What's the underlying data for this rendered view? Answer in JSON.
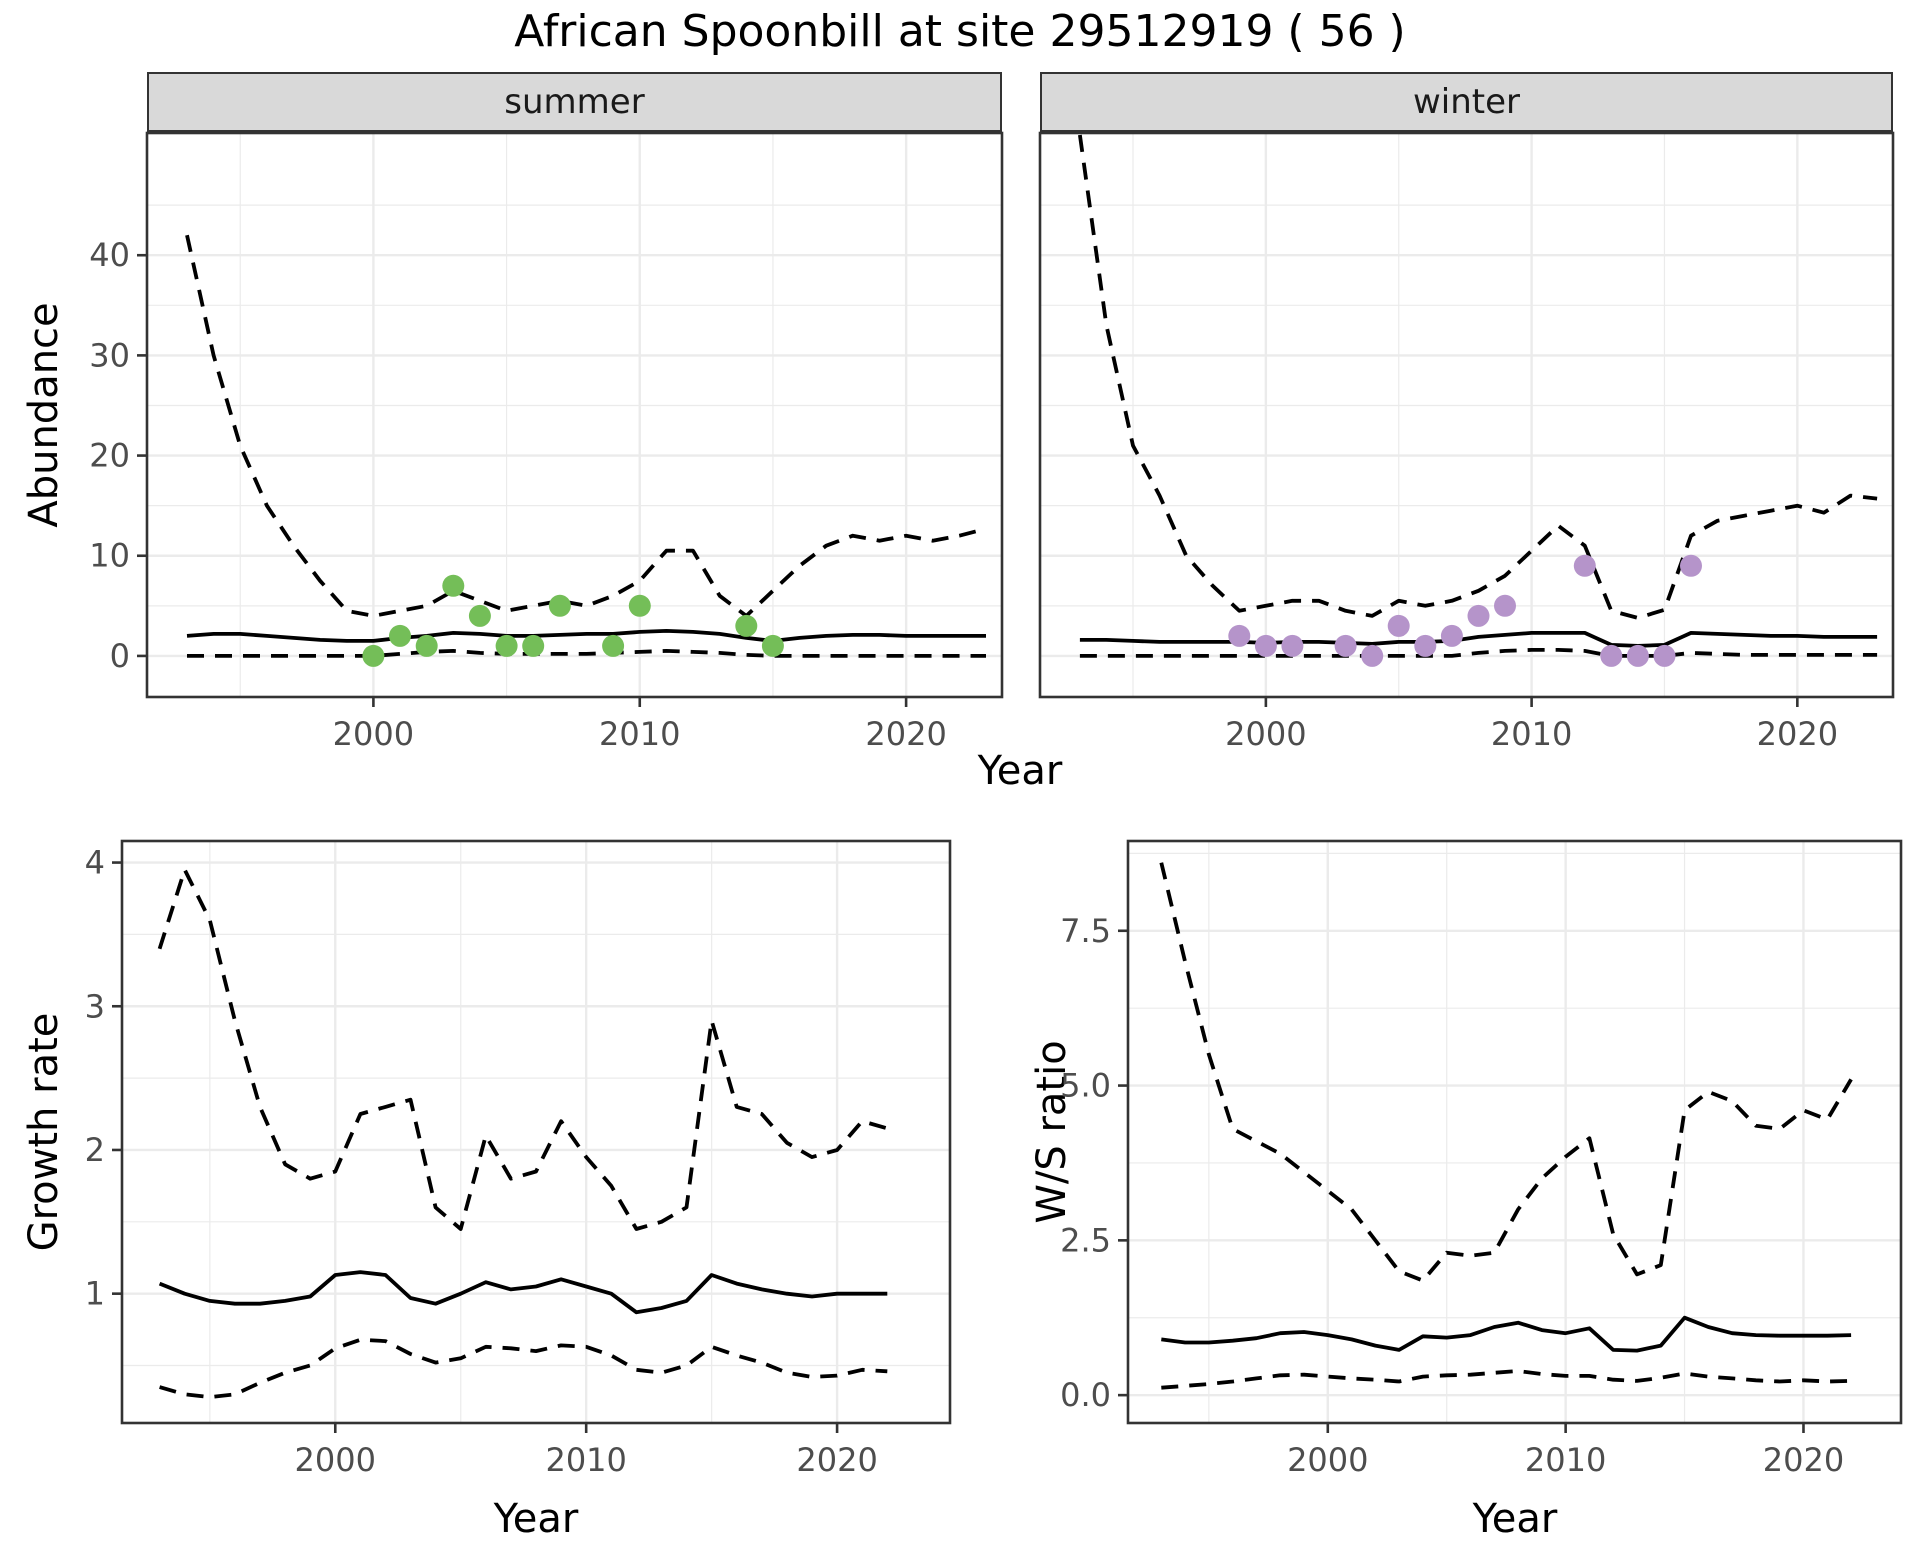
{
  "title": "African Spoonbill at site 29512919 ( 56 )",
  "colors": {
    "summer_point": "#74BE58",
    "winter_point": "#B594CA",
    "series_line": "#000000",
    "grid": "#EBEBEB",
    "strip_bg": "#D9D9D9",
    "panel_bg": "#FFFFFF",
    "panel_border": "#333333",
    "tick_text": "#4D4D4D",
    "title_text": "#000000"
  },
  "chart_data": [
    {
      "id": "abundance-summer",
      "type": "line",
      "facet_label": "summer",
      "xlabel": "Year",
      "ylabel": "Abundance",
      "xlim": [
        1991.5,
        2023.6
      ],
      "ylim": [
        -4.1,
        52.2
      ],
      "x_ticks": [
        2000,
        2010,
        2020
      ],
      "x_tick_labels": [
        "2000",
        "2010",
        "2020"
      ],
      "y_ticks": [
        0,
        10,
        20,
        30,
        40
      ],
      "y_tick_labels": [
        "0",
        "10",
        "20",
        "30",
        "40"
      ],
      "grid": true,
      "legend": "none",
      "years": [
        1993,
        1994,
        1995,
        1996,
        1997,
        1998,
        1999,
        2000,
        2001,
        2002,
        2003,
        2004,
        2005,
        2006,
        2007,
        2008,
        2009,
        2010,
        2011,
        2012,
        2013,
        2014,
        2015,
        2016,
        2017,
        2018,
        2019,
        2020,
        2021,
        2022,
        2023
      ],
      "series": [
        {
          "name": "upper-95ci",
          "style": "dashed",
          "values": [
            42,
            30,
            21,
            15,
            11,
            7.5,
            4.5,
            4,
            4.5,
            5,
            6.5,
            5.5,
            4.5,
            5,
            5.5,
            5,
            6,
            7.5,
            10.5,
            10.5,
            6,
            4,
            6.5,
            9,
            11,
            12,
            11.5,
            12,
            11.5,
            12,
            12.7
          ]
        },
        {
          "name": "median",
          "style": "solid",
          "values": [
            2,
            2.2,
            2.2,
            2,
            1.8,
            1.6,
            1.5,
            1.5,
            1.8,
            2,
            2.3,
            2.2,
            2,
            2,
            2.1,
            2.2,
            2.2,
            2.4,
            2.5,
            2.4,
            2.2,
            1.8,
            1.5,
            1.8,
            2,
            2.1,
            2.1,
            2,
            2,
            2,
            2
          ]
        },
        {
          "name": "lower-95ci",
          "style": "dashed",
          "values": [
            0,
            0,
            0,
            0,
            0,
            0,
            0,
            0,
            0.2,
            0.4,
            0.5,
            0.3,
            0.2,
            0.2,
            0.2,
            0.2,
            0.3,
            0.4,
            0.5,
            0.4,
            0.3,
            0.1,
            0,
            0,
            0,
            0,
            0,
            0,
            0,
            0,
            0
          ]
        }
      ],
      "points": {
        "name": "observed-counts-summer",
        "color": "#74BE58",
        "data": [
          [
            2000,
            0
          ],
          [
            2001,
            2
          ],
          [
            2002,
            1
          ],
          [
            2003,
            7
          ],
          [
            2004,
            4
          ],
          [
            2005,
            1
          ],
          [
            2006,
            1
          ],
          [
            2007,
            5
          ],
          [
            2009,
            1
          ],
          [
            2010,
            5
          ],
          [
            2014,
            3
          ],
          [
            2015,
            1
          ]
        ]
      }
    },
    {
      "id": "abundance-winter",
      "type": "line",
      "facet_label": "winter",
      "xlabel": "Year",
      "ylabel": "Abundance",
      "xlim": [
        1991.5,
        2023.6
      ],
      "ylim": [
        -4.1,
        52.2
      ],
      "x_ticks": [
        2000,
        2010,
        2020
      ],
      "x_tick_labels": [
        "2000",
        "2010",
        "2020"
      ],
      "y_ticks": [
        0,
        10,
        20,
        30,
        40
      ],
      "y_tick_labels": [
        "0",
        "10",
        "20",
        "30",
        "40"
      ],
      "grid": true,
      "legend": "none",
      "years": [
        1993,
        1994,
        1995,
        1996,
        1997,
        1998,
        1999,
        2000,
        2001,
        2002,
        2003,
        2004,
        2005,
        2006,
        2007,
        2008,
        2009,
        2010,
        2011,
        2012,
        2013,
        2014,
        2015,
        2016,
        2017,
        2018,
        2019,
        2020,
        2021,
        2022,
        2023
      ],
      "series": [
        {
          "name": "upper-95ci",
          "style": "dashed",
          "values": [
            52,
            33,
            21,
            16,
            10,
            7,
            4.5,
            5,
            5.5,
            5.5,
            4.5,
            4,
            5.5,
            5,
            5.5,
            6.5,
            8,
            10.5,
            13,
            11,
            4.5,
            3.8,
            4.6,
            12,
            13.5,
            14,
            14.5,
            15,
            14.3,
            16,
            15.7
          ]
        },
        {
          "name": "median",
          "style": "solid",
          "values": [
            1.6,
            1.6,
            1.5,
            1.4,
            1.4,
            1.4,
            1.4,
            1.3,
            1.4,
            1.4,
            1.3,
            1.2,
            1.4,
            1.4,
            1.5,
            1.9,
            2.1,
            2.3,
            2.3,
            2.3,
            1.1,
            1,
            1.1,
            2.3,
            2.2,
            2.1,
            2,
            2,
            1.9,
            1.9,
            1.9
          ]
        },
        {
          "name": "lower-95ci",
          "style": "dashed",
          "values": [
            0,
            0,
            0,
            0,
            0,
            0,
            0,
            0,
            0,
            0,
            0,
            0,
            0,
            0,
            0,
            0.3,
            0.5,
            0.6,
            0.6,
            0.5,
            0,
            0,
            0,
            0.3,
            0.2,
            0.1,
            0.1,
            0.1,
            0.1,
            0.1,
            0.1
          ]
        }
      ],
      "points": {
        "name": "observed-counts-winter",
        "color": "#B594CA",
        "data": [
          [
            1999,
            2
          ],
          [
            2000,
            1
          ],
          [
            2001,
            1
          ],
          [
            2003,
            1
          ],
          [
            2004,
            0
          ],
          [
            2005,
            3
          ],
          [
            2006,
            1
          ],
          [
            2007,
            2
          ],
          [
            2008,
            4
          ],
          [
            2009,
            5
          ],
          [
            2012,
            9
          ],
          [
            2013,
            0
          ],
          [
            2014,
            0
          ],
          [
            2015,
            0
          ],
          [
            2016,
            9
          ]
        ]
      }
    },
    {
      "id": "growth-rate",
      "type": "line",
      "facet_label": "",
      "xlabel": "Year",
      "ylabel": "Growth rate",
      "xlim": [
        1991.5,
        2024.5
      ],
      "ylim": [
        0.1,
        4.15
      ],
      "x_ticks": [
        2000,
        2010,
        2020
      ],
      "x_tick_labels": [
        "2000",
        "2010",
        "2020"
      ],
      "y_ticks": [
        1,
        2,
        3,
        4
      ],
      "y_tick_labels": [
        "1",
        "2",
        "3",
        "4"
      ],
      "grid": true,
      "legend": "none",
      "years": [
        1993,
        1994,
        1995,
        1996,
        1997,
        1998,
        1999,
        2000,
        2001,
        2002,
        2003,
        2004,
        2005,
        2006,
        2007,
        2008,
        2009,
        2010,
        2011,
        2012,
        2013,
        2014,
        2015,
        2016,
        2017,
        2018,
        2019,
        2020,
        2021,
        2022
      ],
      "series": [
        {
          "name": "upper-95ci",
          "style": "dashed",
          "values": [
            3.4,
            3.95,
            3.6,
            2.9,
            2.3,
            1.9,
            1.8,
            1.85,
            2.25,
            2.3,
            2.35,
            1.6,
            1.45,
            2.1,
            1.8,
            1.85,
            2.2,
            1.95,
            1.75,
            1.45,
            1.5,
            1.6,
            2.9,
            2.3,
            2.25,
            2.05,
            1.95,
            2,
            2.2,
            2.15
          ]
        },
        {
          "name": "median",
          "style": "solid",
          "values": [
            1.07,
            1,
            0.95,
            0.93,
            0.93,
            0.95,
            0.98,
            1.13,
            1.15,
            1.13,
            0.97,
            0.93,
            1,
            1.08,
            1.03,
            1.05,
            1.1,
            1.05,
            1,
            0.87,
            0.9,
            0.95,
            1.13,
            1.07,
            1.03,
            1,
            0.98,
            1,
            1,
            1
          ]
        },
        {
          "name": "lower-95ci",
          "style": "dashed",
          "values": [
            0.35,
            0.3,
            0.28,
            0.3,
            0.38,
            0.45,
            0.5,
            0.62,
            0.68,
            0.67,
            0.58,
            0.52,
            0.55,
            0.63,
            0.62,
            0.6,
            0.64,
            0.63,
            0.57,
            0.47,
            0.45,
            0.5,
            0.63,
            0.57,
            0.52,
            0.45,
            0.42,
            0.43,
            0.47,
            0.46
          ]
        }
      ]
    },
    {
      "id": "ws-ratio",
      "type": "line",
      "facet_label": "",
      "xlabel": "Year",
      "ylabel": "W/S ratio",
      "xlim": [
        1991.6,
        2024.1
      ],
      "ylim": [
        -0.45,
        8.95
      ],
      "x_ticks": [
        2000,
        2010,
        2020
      ],
      "x_tick_labels": [
        "2000",
        "2010",
        "2020"
      ],
      "y_ticks": [
        0,
        2.5,
        5,
        7.5
      ],
      "y_tick_labels": [
        "0.0",
        "2.5",
        "5.0",
        "7.5"
      ],
      "grid": true,
      "legend": "none",
      "years": [
        1993,
        1994,
        1995,
        1996,
        1997,
        1998,
        1999,
        2000,
        2001,
        2002,
        2003,
        2004,
        2005,
        2006,
        2007,
        2008,
        2009,
        2010,
        2011,
        2012,
        2013,
        2014,
        2015,
        2016,
        2017,
        2018,
        2019,
        2020,
        2021,
        2022
      ],
      "series": [
        {
          "name": "upper-95ci",
          "style": "dashed",
          "values": [
            8.6,
            7,
            5.5,
            4.3,
            4.1,
            3.9,
            3.6,
            3.3,
            3,
            2.5,
            2,
            1.85,
            2.3,
            2.25,
            2.3,
            3,
            3.5,
            3.85,
            4.15,
            2.6,
            1.95,
            2.1,
            4.6,
            4.9,
            4.75,
            4.35,
            4.3,
            4.6,
            4.45,
            5.1
          ]
        },
        {
          "name": "median",
          "style": "solid",
          "values": [
            0.9,
            0.85,
            0.85,
            0.88,
            0.92,
            1,
            1.02,
            0.97,
            0.9,
            0.8,
            0.73,
            0.95,
            0.93,
            0.97,
            1.1,
            1.17,
            1.05,
            1,
            1.08,
            0.73,
            0.72,
            0.8,
            1.25,
            1.1,
            1,
            0.97,
            0.96,
            0.96,
            0.96,
            0.97
          ]
        },
        {
          "name": "lower-95ci",
          "style": "dashed",
          "values": [
            0.12,
            0.15,
            0.18,
            0.22,
            0.27,
            0.32,
            0.33,
            0.3,
            0.27,
            0.25,
            0.22,
            0.3,
            0.32,
            0.33,
            0.36,
            0.39,
            0.34,
            0.31,
            0.31,
            0.25,
            0.23,
            0.28,
            0.35,
            0.3,
            0.27,
            0.24,
            0.22,
            0.24,
            0.22,
            0.23
          ]
        }
      ]
    }
  ]
}
